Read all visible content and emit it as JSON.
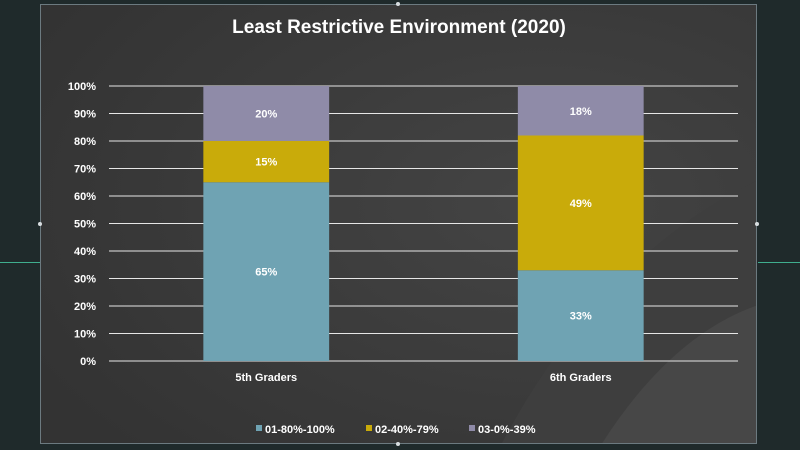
{
  "chart_data": {
    "type": "bar",
    "stacked": true,
    "title": "Least Restrictive Environment (2020)",
    "categories": [
      "5th Graders",
      "6th Graders"
    ],
    "series": [
      {
        "name": "01-80%-100%",
        "values": [
          65,
          33
        ],
        "labels": [
          "65%",
          "33%"
        ]
      },
      {
        "name": "02-40%-79%",
        "values": [
          15,
          49
        ],
        "labels": [
          "15%",
          "49%"
        ]
      },
      {
        "name": "03-0%-39%",
        "values": [
          20,
          18
        ],
        "labels": [
          "20%",
          "18%"
        ]
      }
    ],
    "ylim": [
      0,
      100
    ],
    "yticks": [
      0,
      10,
      20,
      30,
      40,
      50,
      60,
      70,
      80,
      90,
      100
    ],
    "ytick_labels": [
      "0%",
      "10%",
      "20%",
      "30%",
      "40%",
      "50%",
      "60%",
      "70%",
      "80%",
      "90%",
      "100%"
    ],
    "grid": true,
    "legend_position": "bottom",
    "colors": [
      "#6fa3b3",
      "#c9ab0a",
      "#8f8ba8"
    ]
  }
}
